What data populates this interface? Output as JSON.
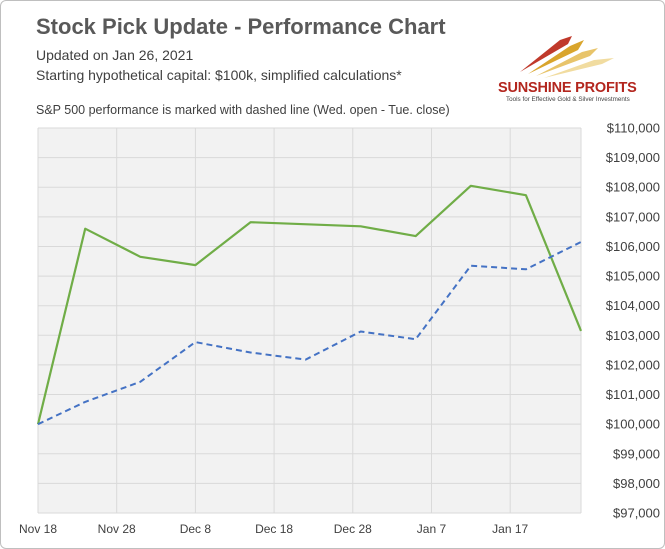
{
  "header": {
    "title": "Stock Pick Update - Performance Chart",
    "updated": "Updated on Jan 26, 2021",
    "capital": "Starting hypothetical capital: $100k, simplified calculations*",
    "note": "S&P 500 performance is marked with dashed line (Wed. open - Tue. close)"
  },
  "logo": {
    "name": "SUNSHINE PROFITS",
    "tagline": "Tools for Effective Gold & Silver Investments"
  },
  "colors": {
    "portfolio": "#70ad47",
    "sp500": "#4472c4",
    "plot_bg": "#f2f2f2",
    "grid": "#d9d9d9"
  },
  "chart_data": {
    "type": "line",
    "x_tick_labels": [
      "Nov 18",
      "Nov 28",
      "Dec 8",
      "Dec 18",
      "Dec 28",
      "Jan 7",
      "Jan 17"
    ],
    "x_range": [
      "2020-11-18",
      "2021-01-26"
    ],
    "ylim": [
      97000,
      110000
    ],
    "y_step": 1000,
    "y_tick_labels": [
      "$97,000",
      "$98,000",
      "$99,000",
      "$100,000",
      "$101,000",
      "$102,000",
      "$103,000",
      "$104,000",
      "$105,000",
      "$106,000",
      "$107,000",
      "$108,000",
      "$109,000",
      "$110,000"
    ],
    "grid": true,
    "series": [
      {
        "style": "solid",
        "points": [
          {
            "x": "2020-11-18",
            "y": 100000
          },
          {
            "x": "2020-11-24",
            "y": 106600
          },
          {
            "x": "2020-12-01",
            "y": 105650
          },
          {
            "x": "2020-12-08",
            "y": 105370
          },
          {
            "x": "2020-12-15",
            "y": 106820
          },
          {
            "x": "2020-12-29",
            "y": 106680
          },
          {
            "x": "2021-01-05",
            "y": 106350
          },
          {
            "x": "2021-01-12",
            "y": 108050
          },
          {
            "x": "2021-01-19",
            "y": 107730
          },
          {
            "x": "2021-01-26",
            "y": 103150
          }
        ]
      },
      {
        "style": "dashed",
        "points": [
          {
            "x": "2020-11-18",
            "y": 100000
          },
          {
            "x": "2020-11-24",
            "y": 100750
          },
          {
            "x": "2020-12-01",
            "y": 101430
          },
          {
            "x": "2020-12-08",
            "y": 102770
          },
          {
            "x": "2020-12-15",
            "y": 102420
          },
          {
            "x": "2020-12-22",
            "y": 102180
          },
          {
            "x": "2020-12-29",
            "y": 103130
          },
          {
            "x": "2021-01-05",
            "y": 102870
          },
          {
            "x": "2021-01-12",
            "y": 105350
          },
          {
            "x": "2021-01-19",
            "y": 105230
          },
          {
            "x": "2021-01-26",
            "y": 106150
          }
        ]
      }
    ]
  }
}
